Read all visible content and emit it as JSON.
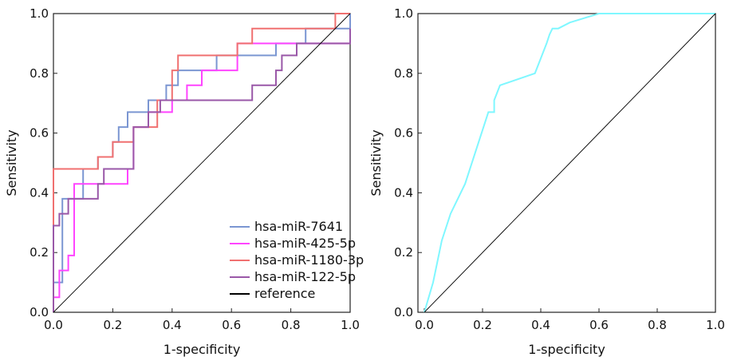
{
  "chart_data": [
    {
      "type": "line",
      "xlabel": "1-specificity",
      "ylabel": "Sensitivity",
      "xlim": [
        0,
        1
      ],
      "ylim": [
        0,
        1
      ],
      "xticks": [
        "0.0",
        "0.2",
        "0.4",
        "0.6",
        "0.8",
        "1.0"
      ],
      "yticks": [
        "0.0",
        "0.2",
        "0.4",
        "0.6",
        "0.8",
        "1.0"
      ],
      "grid": false,
      "legend_position": "bottom-right",
      "series": [
        {
          "name": "hsa-miR-7641",
          "color": "#7b96d2",
          "x": [
            0,
            0,
            0.03,
            0.03,
            0.1,
            0.1,
            0.15,
            0.15,
            0.2,
            0.2,
            0.22,
            0.22,
            0.25,
            0.25,
            0.32,
            0.32,
            0.38,
            0.38,
            0.42,
            0.42,
            0.55,
            0.55,
            0.75,
            0.75,
            0.85,
            0.85,
            1.0,
            1.0
          ],
          "y": [
            0,
            0.1,
            0.1,
            0.38,
            0.38,
            0.48,
            0.48,
            0.52,
            0.52,
            0.57,
            0.57,
            0.62,
            0.62,
            0.67,
            0.67,
            0.71,
            0.71,
            0.76,
            0.76,
            0.81,
            0.81,
            0.86,
            0.86,
            0.9,
            0.9,
            0.95,
            0.95,
            1.0
          ]
        },
        {
          "name": "hsa-miR-425-5p",
          "color": "#ff44ff",
          "x": [
            0,
            0,
            0.02,
            0.02,
            0.05,
            0.05,
            0.07,
            0.07,
            0.25,
            0.25,
            0.27,
            0.27,
            0.32,
            0.32,
            0.4,
            0.4,
            0.45,
            0.45,
            0.5,
            0.5,
            0.62,
            0.62,
            1.0,
            1.0
          ],
          "y": [
            0,
            0.05,
            0.05,
            0.14,
            0.14,
            0.19,
            0.19,
            0.43,
            0.43,
            0.48,
            0.48,
            0.62,
            0.62,
            0.67,
            0.67,
            0.71,
            0.71,
            0.76,
            0.76,
            0.81,
            0.81,
            0.9,
            0.9,
            0.95
          ]
        },
        {
          "name": "hsa-miR-1180-3p",
          "color": "#f07070",
          "x": [
            0,
            0,
            0.15,
            0.15,
            0.2,
            0.2,
            0.27,
            0.27,
            0.35,
            0.35,
            0.4,
            0.4,
            0.42,
            0.42,
            0.62,
            0.62,
            0.67,
            0.67,
            0.95,
            0.95,
            1.0
          ],
          "y": [
            0,
            0.48,
            0.48,
            0.52,
            0.52,
            0.57,
            0.57,
            0.62,
            0.62,
            0.71,
            0.71,
            0.81,
            0.81,
            0.86,
            0.86,
            0.9,
            0.9,
            0.95,
            0.95,
            1.0,
            1.0
          ]
        },
        {
          "name": "hsa-miR-122-5p",
          "color": "#9a58a8",
          "x": [
            0,
            0,
            0.02,
            0.02,
            0.05,
            0.05,
            0.15,
            0.15,
            0.17,
            0.17,
            0.27,
            0.27,
            0.32,
            0.32,
            0.36,
            0.36,
            0.67,
            0.67,
            0.75,
            0.75,
            0.77,
            0.77,
            0.82,
            0.82,
            0.9,
            0.9,
            1.0,
            1.0
          ],
          "y": [
            0,
            0.29,
            0.29,
            0.33,
            0.33,
            0.38,
            0.38,
            0.43,
            0.43,
            0.48,
            0.48,
            0.62,
            0.62,
            0.67,
            0.67,
            0.71,
            0.71,
            0.76,
            0.76,
            0.81,
            0.81,
            0.86,
            0.86,
            0.9,
            0.9,
            0.9,
            0.9,
            0.95
          ]
        },
        {
          "name": "reference",
          "color": "#000000",
          "x": [
            0,
            1
          ],
          "y": [
            0,
            1
          ]
        }
      ]
    },
    {
      "type": "line",
      "xlabel": "1-specificity",
      "ylabel": "Sensitivity",
      "xlim": [
        0,
        1
      ],
      "ylim": [
        0,
        1
      ],
      "xticks": [
        "0.0",
        "0.2",
        "0.4",
        "0.6",
        "0.8",
        "1.0"
      ],
      "yticks": [
        "0.0",
        "0.2",
        "0.4",
        "0.6",
        "0.8",
        "1.0"
      ],
      "grid": false,
      "series": [
        {
          "color": "#7ff7ff",
          "x": [
            0,
            0.03,
            0.06,
            0.09,
            0.14,
            0.18,
            0.22,
            0.24,
            0.24,
            0.26,
            0.38,
            0.4,
            0.42,
            0.43,
            0.44,
            0.46,
            0.5,
            0.6,
            1.0
          ],
          "y": [
            0,
            0.1,
            0.24,
            0.33,
            0.43,
            0.55,
            0.67,
            0.67,
            0.71,
            0.76,
            0.8,
            0.85,
            0.9,
            0.93,
            0.95,
            0.95,
            0.97,
            1.0,
            1.0
          ]
        },
        {
          "color": "#000000",
          "x": [
            0,
            1
          ],
          "y": [
            0,
            1
          ]
        }
      ]
    }
  ]
}
